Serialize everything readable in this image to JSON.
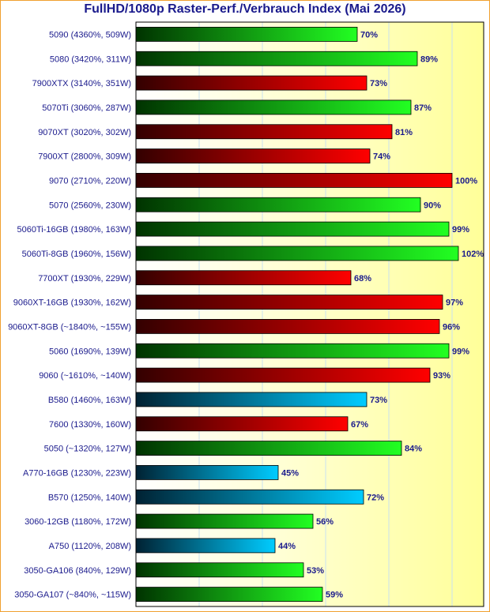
{
  "chart_data": {
    "type": "bar",
    "orientation": "horizontal",
    "title": "FullHD/1080p Raster-Perf./Verbrauch Index (Mai 2026)",
    "xlim": [
      0,
      110
    ],
    "value_suffix": "%",
    "grid": true,
    "categories": [
      "5090 (4360%, 509W)",
      "5080 (3420%, 311W)",
      "7900XTX (3140%, 351W)",
      "5070Ti (3060%, 287W)",
      "9070XT (3020%, 302W)",
      "7900XT (2800%, 309W)",
      "9070 (2710%, 220W)",
      "5070 (2560%, 230W)",
      "5060Ti-16GB (1980%, 163W)",
      "5060Ti-8GB (1960%, 156W)",
      "7700XT (1930%, 229W)",
      "9060XT-16GB (1930%, 162W)",
      "9060XT-8GB (~1840%, ~155W)",
      "5060 (1690%, 139W)",
      "9060 (~1610%, ~140W)",
      "B580 (1460%, 163W)",
      "7600 (1330%, 160W)",
      "5050 (~1320%, 127W)",
      "A770-16GB (1230%, 223W)",
      "B570 (1250%, 140W)",
      "3060-12GB (1180%, 172W)",
      "A750 (1120%, 208W)",
      "3050-GA106 (840%, 129W)",
      "3050-GA107 (~840%, ~115W)"
    ],
    "values": [
      70,
      89,
      73,
      87,
      81,
      74,
      100,
      90,
      99,
      102,
      68,
      97,
      96,
      99,
      93,
      73,
      67,
      84,
      45,
      72,
      56,
      44,
      53,
      59
    ],
    "vendors": [
      "nvidia",
      "nvidia",
      "amd",
      "nvidia",
      "amd",
      "amd",
      "amd",
      "nvidia",
      "nvidia",
      "nvidia",
      "amd",
      "amd",
      "amd",
      "nvidia",
      "amd",
      "intel",
      "amd",
      "nvidia",
      "intel",
      "intel",
      "nvidia",
      "intel",
      "nvidia",
      "nvidia"
    ],
    "colors": {
      "nvidia": [
        "#003300",
        "#22ff22"
      ],
      "amd": [
        "#330000",
        "#ff0000"
      ],
      "intel": [
        "#002233",
        "#00ccff"
      ],
      "background_left": "#ffffff",
      "background_right": "#ffff99",
      "grid": "#c8e0f0",
      "text": "#1a1a8c",
      "frame": "#f0a030"
    }
  }
}
